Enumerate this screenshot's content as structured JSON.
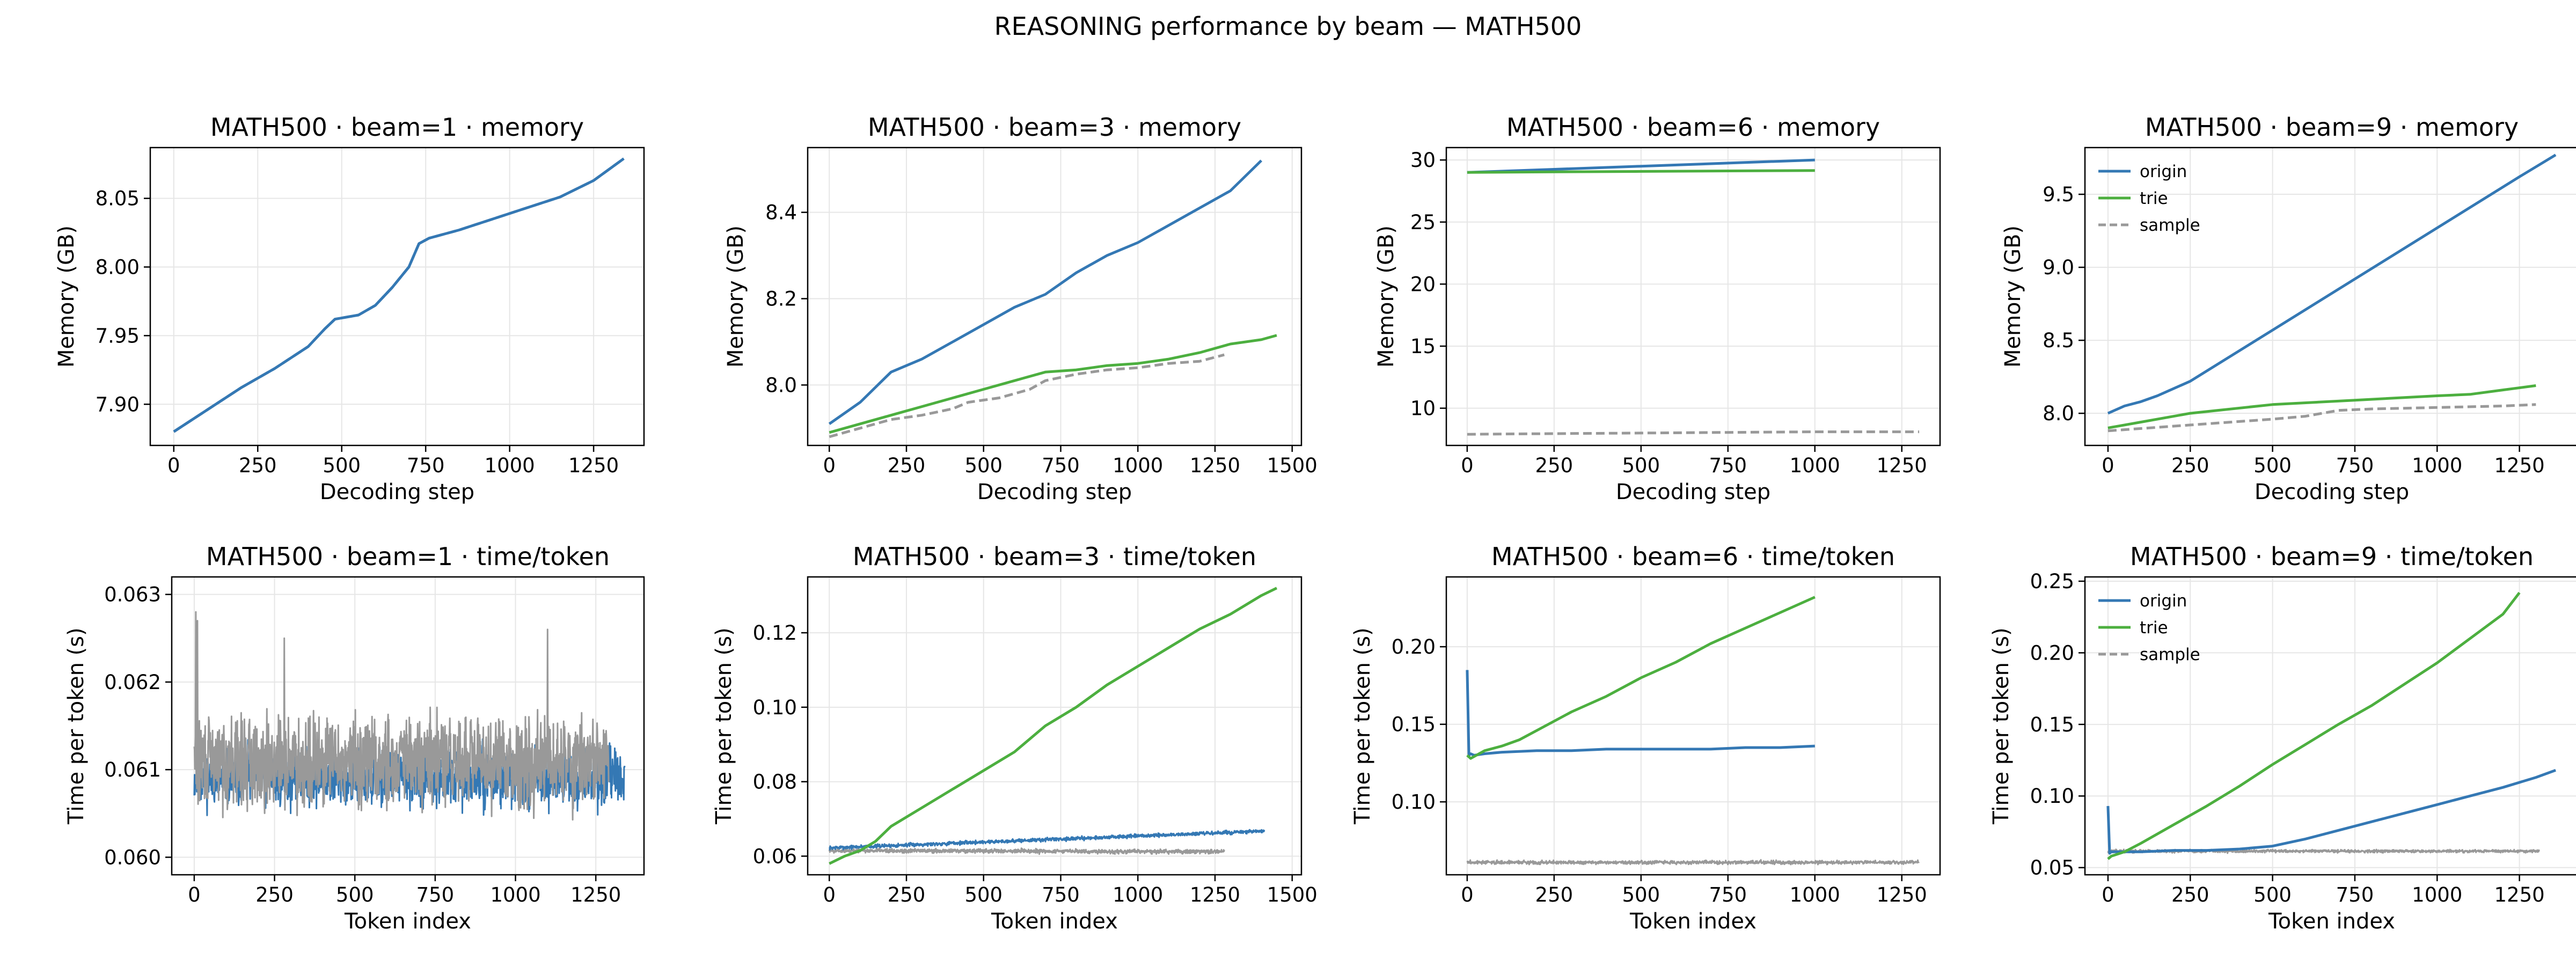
{
  "suptitle": "REASONING performance by beam — MATH500",
  "colors": {
    "origin": "#3478b4",
    "trie": "#4caf3f",
    "sample": "#999999",
    "grid": "#e6e6e6",
    "axes": "#000000"
  },
  "chart_data": [
    {
      "type": "line",
      "title": "MATH500 · beam=1 · memory",
      "xlabel": "Decoding step",
      "ylabel": "Memory (GB)",
      "xlim": [
        -70,
        1400
      ],
      "ylim": [
        7.87,
        8.087
      ],
      "xticks": [
        0,
        250,
        500,
        750,
        1000,
        1250
      ],
      "yticks": [
        7.9,
        7.95,
        8.0,
        8.05
      ],
      "ytick_labels": [
        "7.90",
        "7.95",
        "8.00",
        "8.05"
      ],
      "legend": null,
      "series": [
        {
          "key": "sample",
          "dash": true,
          "x": [
            0,
            100,
            200,
            300,
            400,
            450,
            480,
            550,
            600,
            650,
            700,
            730,
            760,
            850,
            950,
            1050,
            1150,
            1250,
            1340
          ],
          "y": [
            7.88,
            7.896,
            7.912,
            7.926,
            7.942,
            7.955,
            7.962,
            7.965,
            7.972,
            7.985,
            8.0,
            8.017,
            8.021,
            8.027,
            8.035,
            8.043,
            8.051,
            8.063,
            8.079
          ]
        },
        {
          "key": "origin",
          "x": [
            0,
            100,
            200,
            300,
            400,
            450,
            480,
            550,
            600,
            650,
            700,
            730,
            760,
            850,
            950,
            1050,
            1150,
            1250,
            1340
          ],
          "y": [
            7.88,
            7.896,
            7.912,
            7.926,
            7.942,
            7.955,
            7.962,
            7.965,
            7.972,
            7.985,
            8.0,
            8.017,
            8.021,
            8.027,
            8.035,
            8.043,
            8.051,
            8.063,
            8.079
          ]
        }
      ]
    },
    {
      "type": "line",
      "title": "MATH500 · beam=3 · memory",
      "xlabel": "Decoding step",
      "ylabel": "Memory (GB)",
      "xlim": [
        -70,
        1530
      ],
      "ylim": [
        7.86,
        8.55
      ],
      "xticks": [
        0,
        250,
        500,
        750,
        1000,
        1250,
        1500
      ],
      "yticks": [
        8.0,
        8.2,
        8.4
      ],
      "ytick_labels": [
        "8.0",
        "8.2",
        "8.4"
      ],
      "legend": null,
      "series": [
        {
          "key": "origin",
          "x": [
            0,
            100,
            200,
            250,
            300,
            400,
            500,
            600,
            700,
            800,
            900,
            1000,
            1100,
            1200,
            1300,
            1400
          ],
          "y": [
            7.91,
            7.96,
            8.03,
            8.045,
            8.06,
            8.1,
            8.14,
            8.18,
            8.21,
            8.26,
            8.3,
            8.33,
            8.37,
            8.41,
            8.45,
            8.52
          ]
        },
        {
          "key": "trie",
          "x": [
            0,
            100,
            200,
            300,
            400,
            500,
            600,
            700,
            800,
            900,
            1000,
            1100,
            1200,
            1300,
            1400,
            1450
          ],
          "y": [
            7.89,
            7.91,
            7.93,
            7.95,
            7.97,
            7.99,
            8.01,
            8.03,
            8.035,
            8.045,
            8.05,
            8.06,
            8.075,
            8.095,
            8.105,
            8.115
          ]
        },
        {
          "key": "sample",
          "dash": true,
          "x": [
            0,
            100,
            200,
            300,
            400,
            450,
            500,
            550,
            600,
            650,
            700,
            800,
            900,
            1000,
            1100,
            1200,
            1280
          ],
          "y": [
            7.88,
            7.9,
            7.92,
            7.93,
            7.945,
            7.96,
            7.965,
            7.97,
            7.98,
            7.99,
            8.01,
            8.025,
            8.035,
            8.04,
            8.05,
            8.055,
            8.07
          ]
        }
      ]
    },
    {
      "type": "line",
      "title": "MATH500 · beam=6 · memory",
      "xlabel": "Decoding step",
      "ylabel": "Memory (GB)",
      "xlim": [
        -60,
        1360
      ],
      "ylim": [
        7.0,
        31.0
      ],
      "xticks": [
        0,
        250,
        500,
        750,
        1000,
        1250
      ],
      "yticks": [
        10,
        15,
        20,
        25,
        30
      ],
      "ytick_labels": [
        "10",
        "15",
        "20",
        "25",
        "30"
      ],
      "legend": null,
      "series": [
        {
          "key": "origin",
          "x": [
            0,
            250,
            500,
            750,
            1000
          ],
          "y": [
            29.0,
            29.25,
            29.5,
            29.75,
            30.0
          ]
        },
        {
          "key": "trie",
          "x": [
            0,
            250,
            500,
            750,
            1000
          ],
          "y": [
            29.0,
            29.04,
            29.08,
            29.12,
            29.15
          ]
        },
        {
          "key": "sample",
          "dash": true,
          "x": [
            0,
            250,
            500,
            750,
            1000,
            1300
          ],
          "y": [
            7.9,
            7.95,
            8.0,
            8.05,
            8.1,
            8.1
          ]
        }
      ]
    },
    {
      "type": "line",
      "title": "MATH500 · beam=9 · memory",
      "xlabel": "Decoding step",
      "ylabel": "Memory (GB)",
      "xlim": [
        -70,
        1430
      ],
      "ylim": [
        7.78,
        9.82
      ],
      "xticks": [
        0,
        250,
        500,
        750,
        1000,
        1250
      ],
      "yticks": [
        8.0,
        8.5,
        9.0,
        9.5
      ],
      "ytick_labels": [
        "8.0",
        "8.5",
        "9.0",
        "9.5"
      ],
      "legend": {
        "position": "upper-left",
        "entries": [
          {
            "key": "origin",
            "label": "origin"
          },
          {
            "key": "trie",
            "label": "trie"
          },
          {
            "key": "sample",
            "label": "sample"
          }
        ]
      },
      "series": [
        {
          "key": "origin",
          "x": [
            0,
            50,
            100,
            150,
            250,
            500,
            750,
            1000,
            1250,
            1360
          ],
          "y": [
            8.0,
            8.05,
            8.08,
            8.12,
            8.22,
            8.57,
            8.92,
            9.27,
            9.62,
            9.77
          ]
        },
        {
          "key": "trie",
          "x": [
            0,
            50,
            100,
            250,
            500,
            750,
            1000,
            1100,
            1200,
            1300
          ],
          "y": [
            7.9,
            7.92,
            7.94,
            8.0,
            8.06,
            8.09,
            8.12,
            8.13,
            8.16,
            8.19
          ]
        },
        {
          "key": "sample",
          "dash": true,
          "x": [
            0,
            250,
            500,
            600,
            700,
            800,
            1000,
            1200,
            1300
          ],
          "y": [
            7.88,
            7.92,
            7.96,
            7.98,
            8.02,
            8.03,
            8.04,
            8.05,
            8.06
          ]
        }
      ]
    },
    {
      "type": "line",
      "title": "MATH500 · beam=1 · time/token",
      "xlabel": "Token index",
      "ylabel": "Time per token (s)",
      "xlim": [
        -70,
        1400
      ],
      "ylim": [
        0.0598,
        0.0632
      ],
      "xticks": [
        0,
        250,
        500,
        750,
        1000,
        1250
      ],
      "yticks": [
        0.06,
        0.061,
        0.062,
        0.063
      ],
      "ytick_labels": [
        "0.060",
        "0.061",
        "0.062",
        "0.063"
      ],
      "legend": null,
      "series": [
        {
          "key": "origin",
          "noisy": {
            "n": 1340,
            "x0": 0,
            "x1": 1340,
            "mean": 0.0609,
            "noise": 0.00022,
            "seed": 11
          }
        },
        {
          "key": "sample",
          "noisy": {
            "n": 1290,
            "x0": 0,
            "x1": 1290,
            "mean": 0.0611,
            "noise": 0.00035,
            "seed": 29,
            "spikes": [
              [
                5,
                0.0628
              ],
              [
                280,
                0.0625
              ],
              [
                1100,
                0.0626
              ],
              [
                10,
                0.0627
              ]
            ]
          }
        }
      ]
    },
    {
      "type": "line",
      "title": "MATH500 · beam=3 · time/token",
      "xlabel": "Token index",
      "ylabel": "Time per token (s)",
      "xlim": [
        -70,
        1530
      ],
      "ylim": [
        0.055,
        0.135
      ],
      "xticks": [
        0,
        250,
        500,
        750,
        1000,
        1250,
        1500
      ],
      "yticks": [
        0.06,
        0.08,
        0.1,
        0.12
      ],
      "ytick_labels": [
        "0.06",
        "0.08",
        "0.10",
        "0.12"
      ],
      "legend": null,
      "series": [
        {
          "key": "sample",
          "noisy": {
            "n": 1280,
            "x0": 0,
            "x1": 1280,
            "mean": 0.0615,
            "end": 0.0612,
            "noise": 0.0004,
            "seed": 5
          }
        },
        {
          "key": "origin",
          "noisy": {
            "n": 1410,
            "x0": 0,
            "x1": 1410,
            "mean": 0.0622,
            "end": 0.0667,
            "noise": 0.00035,
            "seed": 7
          }
        },
        {
          "key": "trie",
          "x": [
            0,
            50,
            100,
            150,
            200,
            300,
            400,
            500,
            600,
            700,
            800,
            900,
            1000,
            1100,
            1200,
            1300,
            1400,
            1450
          ],
          "y": [
            0.058,
            0.06,
            0.0615,
            0.064,
            0.068,
            0.073,
            0.078,
            0.083,
            0.088,
            0.095,
            0.1,
            0.106,
            0.111,
            0.116,
            0.121,
            0.125,
            0.13,
            0.132
          ]
        }
      ]
    },
    {
      "type": "line",
      "title": "MATH500 · beam=6 · time/token",
      "xlabel": "Token index",
      "ylabel": "Time per token (s)",
      "xlim": [
        -60,
        1360
      ],
      "ylim": [
        0.053,
        0.245
      ],
      "xticks": [
        0,
        250,
        500,
        750,
        1000,
        1250
      ],
      "yticks": [
        0.1,
        0.15,
        0.2
      ],
      "ytick_labels": [
        "0.10",
        "0.15",
        "0.20"
      ],
      "legend": null,
      "series": [
        {
          "key": "sample",
          "noisy": {
            "n": 1300,
            "x0": 0,
            "x1": 1300,
            "mean": 0.061,
            "noise": 0.0008,
            "seed": 3
          }
        },
        {
          "key": "origin",
          "x": [
            0,
            5,
            10,
            20,
            50,
            100,
            200,
            300,
            400,
            500,
            600,
            700,
            800,
            900,
            1000
          ],
          "y": [
            0.185,
            0.13,
            0.131,
            0.13,
            0.131,
            0.132,
            0.133,
            0.133,
            0.134,
            0.134,
            0.134,
            0.134,
            0.135,
            0.135,
            0.136
          ]
        },
        {
          "key": "trie",
          "x": [
            0,
            10,
            50,
            100,
            150,
            200,
            300,
            400,
            500,
            600,
            700,
            800,
            900,
            1000
          ],
          "y": [
            0.13,
            0.128,
            0.133,
            0.136,
            0.14,
            0.146,
            0.158,
            0.168,
            0.18,
            0.19,
            0.202,
            0.212,
            0.222,
            0.232
          ]
        }
      ]
    },
    {
      "type": "line",
      "title": "MATH500 · beam=9 · time/token",
      "xlabel": "Token index",
      "ylabel": "Time per token (s)",
      "xlim": [
        -70,
        1430
      ],
      "ylim": [
        0.045,
        0.253
      ],
      "xticks": [
        0,
        250,
        500,
        750,
        1000,
        1250
      ],
      "yticks": [
        0.05,
        0.1,
        0.15,
        0.2,
        0.25
      ],
      "ytick_labels": [
        "0.05",
        "0.10",
        "0.15",
        "0.20",
        "0.25"
      ],
      "legend": {
        "position": "upper-left",
        "entries": [
          {
            "key": "origin",
            "label": "origin"
          },
          {
            "key": "trie",
            "label": "trie"
          },
          {
            "key": "sample",
            "label": "sample"
          }
        ]
      },
      "series": [
        {
          "key": "sample",
          "noisy": {
            "n": 1310,
            "x0": 0,
            "x1": 1310,
            "mean": 0.0615,
            "noise": 0.0007,
            "seed": 13
          }
        },
        {
          "key": "origin",
          "x": [
            0,
            5,
            10,
            20,
            100,
            200,
            300,
            400,
            500,
            600,
            700,
            800,
            900,
            1000,
            1100,
            1200,
            1300,
            1360
          ],
          "y": [
            0.093,
            0.06,
            0.061,
            0.061,
            0.061,
            0.062,
            0.062,
            0.063,
            0.065,
            0.07,
            0.076,
            0.082,
            0.088,
            0.094,
            0.1,
            0.106,
            0.113,
            0.118
          ]
        },
        {
          "key": "trie",
          "x": [
            0,
            10,
            50,
            100,
            200,
            300,
            400,
            500,
            600,
            700,
            800,
            900,
            1000,
            1100,
            1200,
            1250
          ],
          "y": [
            0.056,
            0.058,
            0.061,
            0.067,
            0.08,
            0.093,
            0.107,
            0.122,
            0.136,
            0.15,
            0.163,
            0.178,
            0.193,
            0.21,
            0.227,
            0.242
          ]
        }
      ]
    }
  ]
}
